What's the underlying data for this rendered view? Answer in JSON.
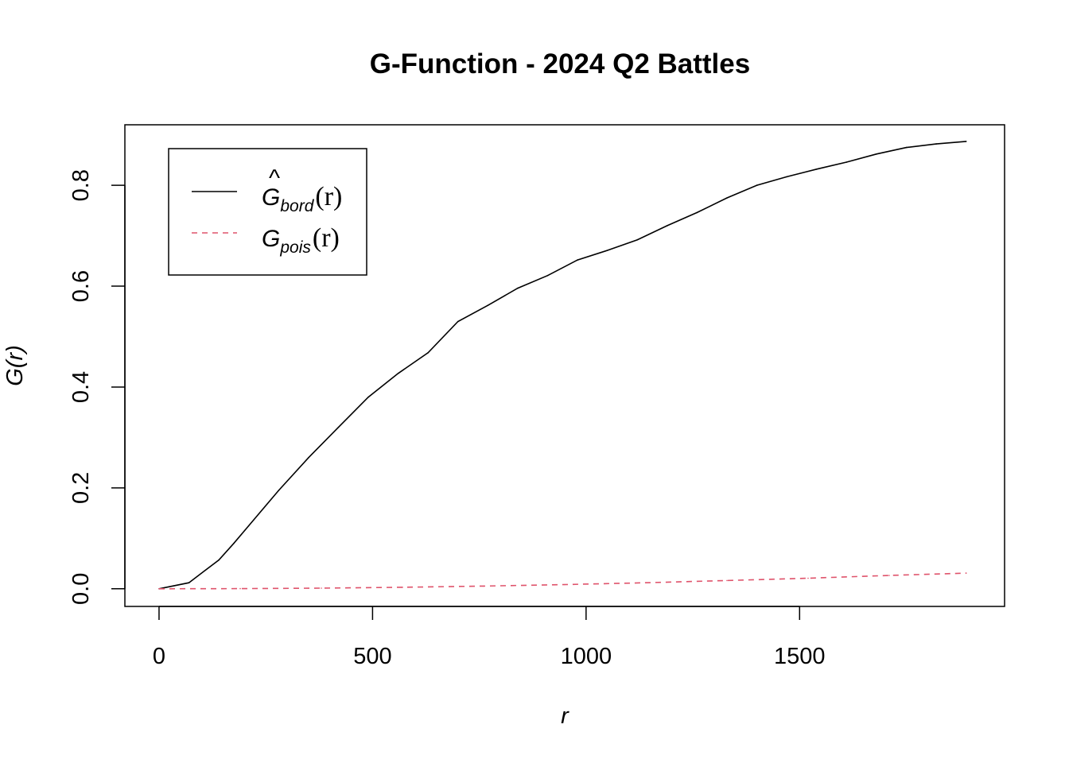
{
  "chart_data": {
    "type": "line",
    "title": "G-Function - 2024 Q2 Battles",
    "xlabel": "r",
    "ylabel": "G(r)",
    "xlim": [
      -80,
      1980
    ],
    "ylim": [
      -0.035,
      0.92
    ],
    "xticks": [
      0,
      500,
      1000,
      1500
    ],
    "yticks": [
      0.0,
      0.2,
      0.4,
      0.6,
      0.8
    ],
    "xtick_labels": [
      "0",
      "500",
      "1000",
      "1500"
    ],
    "ytick_labels": [
      "0.0",
      "0.2",
      "0.4",
      "0.6",
      "0.8"
    ],
    "grid": false,
    "legend_position": "top-left",
    "series": [
      {
        "name": "Ĝbord(r)",
        "legend_main": "G",
        "legend_hat": "^",
        "legend_sub": "bord",
        "legend_arg": "(r)",
        "color": "#000000",
        "dash": "solid",
        "x": [
          0,
          70,
          140,
          175,
          210,
          280,
          350,
          420,
          490,
          560,
          630,
          700,
          770,
          840,
          910,
          980,
          1050,
          1120,
          1190,
          1260,
          1330,
          1400,
          1470,
          1540,
          1610,
          1680,
          1750,
          1820,
          1890
        ],
        "values": [
          0.0,
          0.012,
          0.057,
          0.09,
          0.125,
          0.195,
          0.26,
          0.32,
          0.38,
          0.427,
          0.468,
          0.53,
          0.562,
          0.596,
          0.621,
          0.652,
          0.671,
          0.692,
          0.72,
          0.746,
          0.775,
          0.8,
          0.817,
          0.832,
          0.846,
          0.862,
          0.875,
          0.882,
          0.887
        ]
      },
      {
        "name": "Gpois(r)",
        "legend_main": "G",
        "legend_hat": "",
        "legend_sub": "pois",
        "legend_arg": "(r)",
        "color": "#df536b",
        "dash": "dashed",
        "x": [
          0,
          190,
          380,
          570,
          760,
          950,
          1140,
          1330,
          1520,
          1710,
          1890
        ],
        "values": [
          0.0,
          0.0003,
          0.0013,
          0.003,
          0.0054,
          0.0084,
          0.012,
          0.0163,
          0.021,
          0.0265,
          0.031
        ]
      }
    ]
  }
}
